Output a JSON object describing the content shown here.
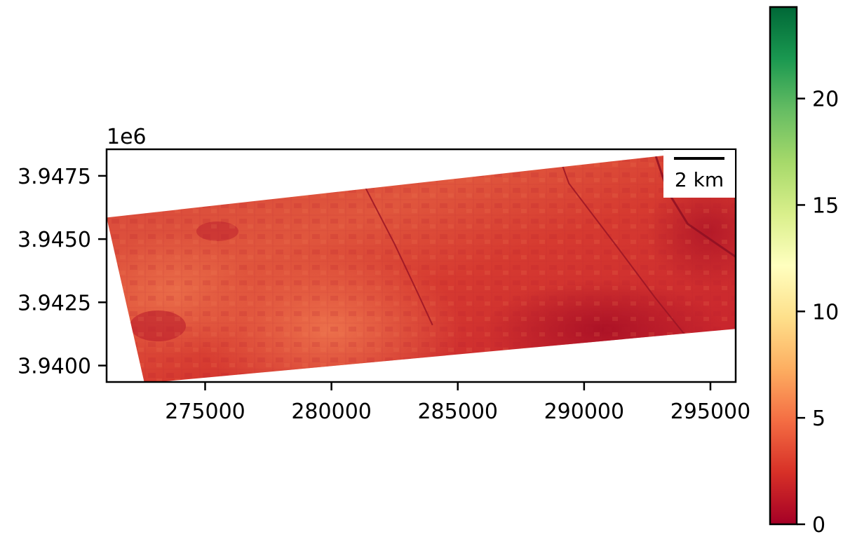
{
  "figure": {
    "map": {
      "x_offset_label": "",
      "y_offset_label": "1e6",
      "xlim": [
        271100,
        296000
      ],
      "ylim": [
        3939350,
        3948550
      ],
      "x_ticks": [
        {
          "value": 275000,
          "label": "275000"
        },
        {
          "value": 280000,
          "label": "280000"
        },
        {
          "value": 285000,
          "label": "285000"
        },
        {
          "value": 290000,
          "label": "290000"
        },
        {
          "value": 295000,
          "label": "295000"
        }
      ],
      "y_ticks": [
        {
          "value": 3947500,
          "label": "3.9475"
        },
        {
          "value": 3945000,
          "label": "3.9450"
        },
        {
          "value": 3942500,
          "label": "3.9425"
        },
        {
          "value": 3940000,
          "label": "3.9400"
        }
      ],
      "scene_footprint": [
        [
          271100,
          3945850
        ],
        [
          295400,
          3948550
        ],
        [
          296000,
          3948550
        ],
        [
          296000,
          3941450
        ],
        [
          272600,
          3939300
        ]
      ],
      "linear_features": [
        {
          "kind": "road",
          "points": [
            [
              281300,
              3947120
            ],
            [
              282500,
              3944800
            ],
            [
              283400,
              3942900
            ],
            [
              284000,
              3941600
            ]
          ]
        },
        {
          "kind": "road",
          "points": [
            [
              289000,
              3948300
            ],
            [
              289400,
              3947200
            ],
            [
              291300,
              3944700
            ],
            [
              292800,
              3942700
            ],
            [
              294000,
              3941200
            ]
          ]
        },
        {
          "kind": "river",
          "points": [
            [
              292800,
              3948400
            ],
            [
              293300,
              3946900
            ],
            [
              294100,
              3945600
            ],
            [
              296000,
              3944300
            ]
          ]
        }
      ],
      "scale_bar": {
        "label": "2 km",
        "length_m": 2000
      }
    },
    "colorbar": {
      "colormap": "RdYlGn",
      "range": [
        0,
        24.3
      ],
      "ticks": [
        {
          "value": 0,
          "label": "0"
        },
        {
          "value": 5,
          "label": "5"
        },
        {
          "value": 10,
          "label": "10"
        },
        {
          "value": 15,
          "label": "15"
        },
        {
          "value": 20,
          "label": "20"
        }
      ],
      "stops": [
        "#a50026",
        "#d73027",
        "#f46d43",
        "#fdae61",
        "#fee08b",
        "#ffffbf",
        "#d9ef8b",
        "#a6d96a",
        "#66bd63",
        "#1a9850",
        "#006837"
      ]
    }
  }
}
